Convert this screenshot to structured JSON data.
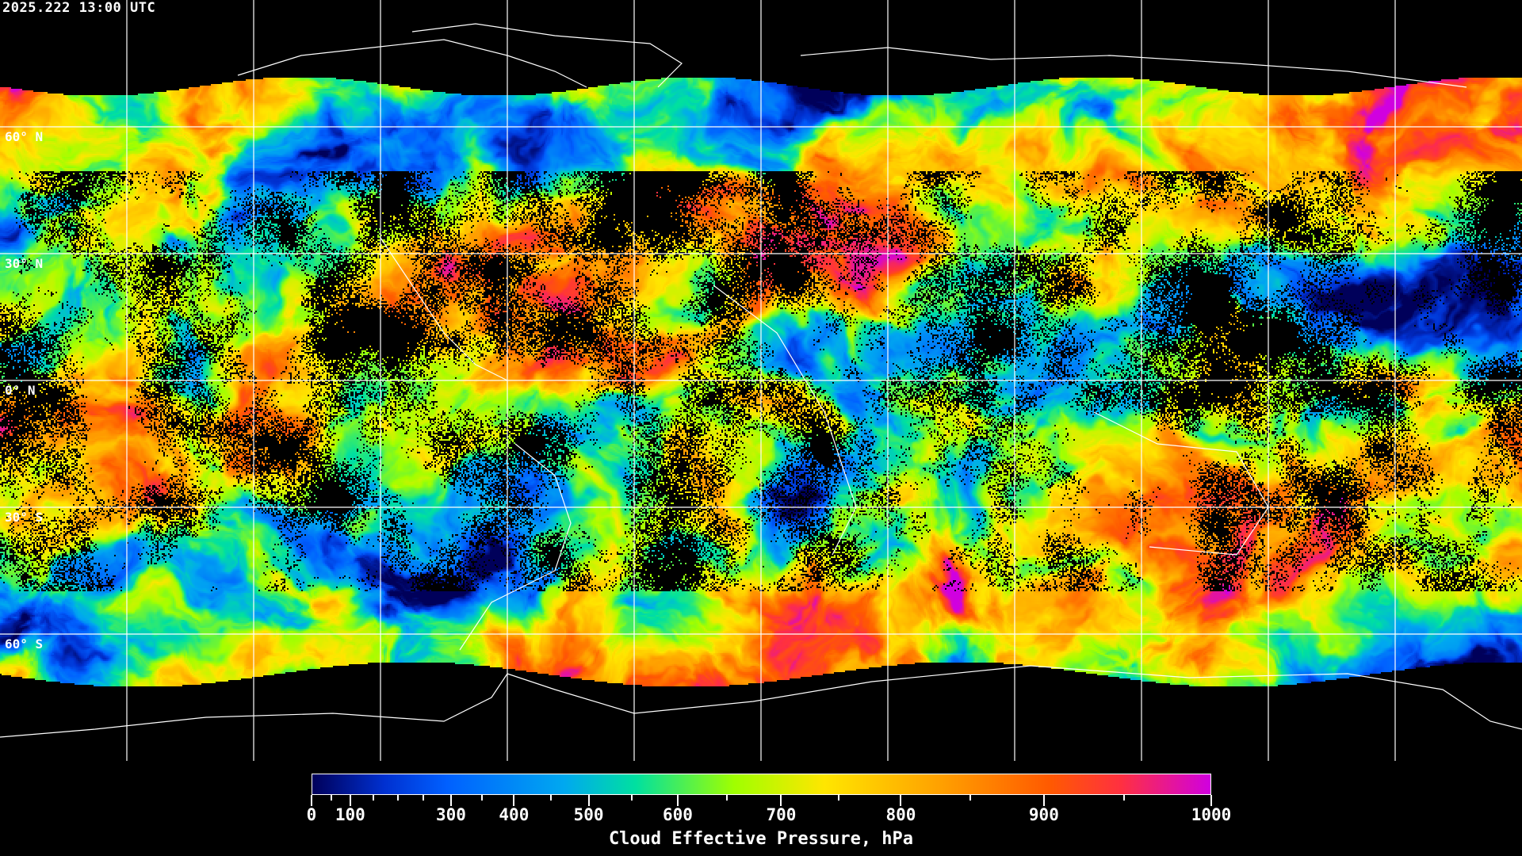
{
  "timestamp": "2025.222 13:00 UTC",
  "map": {
    "projection": "equirectangular",
    "variable": "cloud effective pressure",
    "graticule_spacing_deg": 30,
    "lat_labels": [
      "60° N",
      "30° N",
      "0° N",
      "30° S",
      "60° S"
    ],
    "no_data_color": "#000000",
    "coastline_color": "#ffffff",
    "gridline_color": "#ffffff"
  },
  "colorbar": {
    "title": "Cloud Effective Pressure, hPa",
    "range": [
      0,
      1000
    ],
    "tick_labels": [
      "0",
      "100",
      "300",
      "400",
      "500",
      "600",
      "700",
      "800",
      "900",
      "1000"
    ],
    "minor_ticks": [
      50,
      150,
      200,
      250,
      350,
      450,
      550,
      650,
      750,
      850,
      950
    ],
    "colors": [
      "#00005a",
      "#0030d0",
      "#0060ff",
      "#00a8f0",
      "#00e0a0",
      "#a0ff00",
      "#ffe600",
      "#ffa000",
      "#ff5a00",
      "#ff3040",
      "#d000e0"
    ]
  }
}
